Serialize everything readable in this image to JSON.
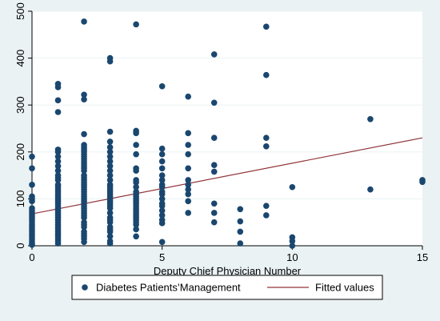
{
  "chart_data": {
    "type": "scatter",
    "title": "",
    "xlabel": "Deputy Chief Physician Number",
    "ylabel": "",
    "xlim": [
      0,
      15
    ],
    "ylim": [
      0,
      500
    ],
    "x_ticks": [
      0,
      5,
      10,
      15
    ],
    "y_ticks": [
      0,
      100,
      200,
      300,
      400,
      500
    ],
    "grid": "horizontal",
    "legend_position": "bottom",
    "colors": {
      "outer_background": "#eaf2f3",
      "plot_background": "#ffffff",
      "marker": "#1a476f",
      "fit_line": "#90353b",
      "grid": "#eaf2f3"
    },
    "series": [
      {
        "name": "Diabetes Patients’Management",
        "kind": "scatter",
        "points": [
          [
            0,
            190
          ],
          [
            0,
            165
          ],
          [
            0,
            130
          ],
          [
            0,
            105
          ],
          [
            0,
            100
          ],
          [
            0,
            95
          ],
          [
            0,
            80
          ],
          [
            0,
            75
          ],
          [
            0,
            70
          ],
          [
            0,
            65
          ],
          [
            0,
            60
          ],
          [
            0,
            55
          ],
          [
            0,
            50
          ],
          [
            0,
            45
          ],
          [
            0,
            40
          ],
          [
            0,
            35
          ],
          [
            0,
            30
          ],
          [
            0,
            25
          ],
          [
            0,
            20
          ],
          [
            0,
            15
          ],
          [
            0,
            10
          ],
          [
            0,
            5
          ],
          [
            0,
            2
          ],
          [
            1,
            345
          ],
          [
            1,
            338
          ],
          [
            1,
            310
          ],
          [
            1,
            285
          ],
          [
            1,
            205
          ],
          [
            1,
            200
          ],
          [
            1,
            190
          ],
          [
            1,
            180
          ],
          [
            1,
            170
          ],
          [
            1,
            160
          ],
          [
            1,
            150
          ],
          [
            1,
            145
          ],
          [
            1,
            140
          ],
          [
            1,
            130
          ],
          [
            1,
            125
          ],
          [
            1,
            120
          ],
          [
            1,
            115
          ],
          [
            1,
            110
          ],
          [
            1,
            105
          ],
          [
            1,
            100
          ],
          [
            1,
            95
          ],
          [
            1,
            90
          ],
          [
            1,
            85
          ],
          [
            1,
            80
          ],
          [
            1,
            75
          ],
          [
            1,
            70
          ],
          [
            1,
            65
          ],
          [
            1,
            60
          ],
          [
            1,
            55
          ],
          [
            1,
            50
          ],
          [
            1,
            45
          ],
          [
            1,
            40
          ],
          [
            1,
            35
          ],
          [
            1,
            30
          ],
          [
            1,
            25
          ],
          [
            1,
            20
          ],
          [
            1,
            15
          ],
          [
            1,
            10
          ],
          [
            1,
            5
          ],
          [
            2,
            478
          ],
          [
            2,
            322
          ],
          [
            2,
            312
          ],
          [
            2,
            238
          ],
          [
            2,
            215
          ],
          [
            2,
            210
          ],
          [
            2,
            205
          ],
          [
            2,
            200
          ],
          [
            2,
            195
          ],
          [
            2,
            190
          ],
          [
            2,
            185
          ],
          [
            2,
            180
          ],
          [
            2,
            175
          ],
          [
            2,
            170
          ],
          [
            2,
            165
          ],
          [
            2,
            160
          ],
          [
            2,
            150
          ],
          [
            2,
            145
          ],
          [
            2,
            140
          ],
          [
            2,
            135
          ],
          [
            2,
            130
          ],
          [
            2,
            125
          ],
          [
            2,
            120
          ],
          [
            2,
            115
          ],
          [
            2,
            110
          ],
          [
            2,
            105
          ],
          [
            2,
            100
          ],
          [
            2,
            95
          ],
          [
            2,
            90
          ],
          [
            2,
            85
          ],
          [
            2,
            80
          ],
          [
            2,
            75
          ],
          [
            2,
            70
          ],
          [
            2,
            65
          ],
          [
            2,
            60
          ],
          [
            2,
            50
          ],
          [
            2,
            45
          ],
          [
            2,
            40
          ],
          [
            2,
            30
          ],
          [
            2,
            25
          ],
          [
            2,
            20
          ],
          [
            2,
            15
          ],
          [
            2,
            8
          ],
          [
            3,
            400
          ],
          [
            3,
            393
          ],
          [
            3,
            243
          ],
          [
            3,
            222
          ],
          [
            3,
            210
          ],
          [
            3,
            200
          ],
          [
            3,
            190
          ],
          [
            3,
            180
          ],
          [
            3,
            170
          ],
          [
            3,
            160
          ],
          [
            3,
            150
          ],
          [
            3,
            140
          ],
          [
            3,
            130
          ],
          [
            3,
            125
          ],
          [
            3,
            120
          ],
          [
            3,
            115
          ],
          [
            3,
            110
          ],
          [
            3,
            105
          ],
          [
            3,
            100
          ],
          [
            3,
            95
          ],
          [
            3,
            90
          ],
          [
            3,
            85
          ],
          [
            3,
            80
          ],
          [
            3,
            70
          ],
          [
            3,
            60
          ],
          [
            3,
            55
          ],
          [
            3,
            50
          ],
          [
            3,
            40
          ],
          [
            3,
            35
          ],
          [
            3,
            30
          ],
          [
            3,
            20
          ],
          [
            3,
            10
          ],
          [
            3,
            5
          ],
          [
            4,
            472
          ],
          [
            4,
            245
          ],
          [
            4,
            240
          ],
          [
            4,
            215
          ],
          [
            4,
            195
          ],
          [
            4,
            165
          ],
          [
            4,
            160
          ],
          [
            4,
            140
          ],
          [
            4,
            135
          ],
          [
            4,
            125
          ],
          [
            4,
            115
          ],
          [
            4,
            110
          ],
          [
            4,
            105
          ],
          [
            4,
            100
          ],
          [
            4,
            95
          ],
          [
            4,
            90
          ],
          [
            4,
            85
          ],
          [
            4,
            80
          ],
          [
            4,
            75
          ],
          [
            4,
            70
          ],
          [
            4,
            65
          ],
          [
            4,
            60
          ],
          [
            4,
            55
          ],
          [
            4,
            50
          ],
          [
            4,
            45
          ],
          [
            4,
            35
          ],
          [
            4,
            20
          ],
          [
            5,
            340
          ],
          [
            5,
            207
          ],
          [
            5,
            195
          ],
          [
            5,
            180
          ],
          [
            5,
            165
          ],
          [
            5,
            150
          ],
          [
            5,
            140
          ],
          [
            5,
            130
          ],
          [
            5,
            125
          ],
          [
            5,
            115
          ],
          [
            5,
            110
          ],
          [
            5,
            100
          ],
          [
            5,
            90
          ],
          [
            5,
            85
          ],
          [
            5,
            75
          ],
          [
            5,
            65
          ],
          [
            5,
            55
          ],
          [
            5,
            48
          ],
          [
            5,
            8
          ],
          [
            6,
            318
          ],
          [
            6,
            240
          ],
          [
            6,
            215
          ],
          [
            6,
            195
          ],
          [
            6,
            165
          ],
          [
            6,
            140
          ],
          [
            6,
            130
          ],
          [
            6,
            120
          ],
          [
            6,
            110
          ],
          [
            6,
            95
          ],
          [
            6,
            70
          ],
          [
            7,
            408
          ],
          [
            7,
            305
          ],
          [
            7,
            230
          ],
          [
            7,
            172
          ],
          [
            7,
            158
          ],
          [
            7,
            90
          ],
          [
            7,
            70
          ],
          [
            7,
            50
          ],
          [
            8,
            78
          ],
          [
            8,
            52
          ],
          [
            8,
            30
          ],
          [
            8,
            5
          ],
          [
            9,
            467
          ],
          [
            9,
            364
          ],
          [
            9,
            230
          ],
          [
            9,
            212
          ],
          [
            9,
            85
          ],
          [
            9,
            65
          ],
          [
            10,
            125
          ],
          [
            10,
            18
          ],
          [
            10,
            10
          ],
          [
            10,
            0
          ],
          [
            13,
            270
          ],
          [
            13,
            120
          ],
          [
            15,
            140
          ],
          [
            15,
            136
          ]
        ]
      },
      {
        "name": "Fitted values",
        "kind": "line",
        "points": [
          [
            0,
            68
          ],
          [
            15,
            230
          ]
        ]
      }
    ]
  }
}
